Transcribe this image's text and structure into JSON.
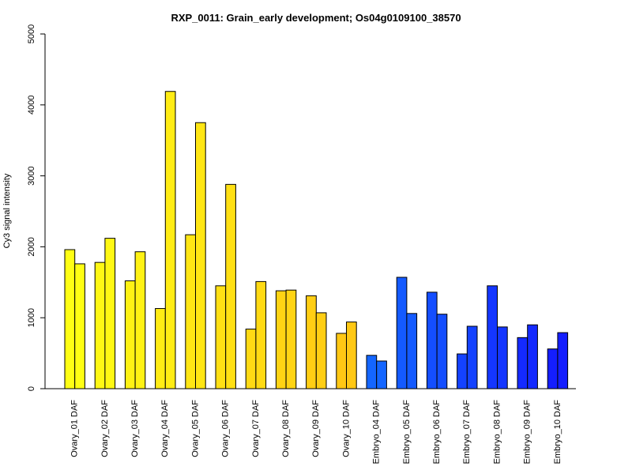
{
  "chart_data": {
    "type": "bar",
    "title": "RXP_0011: Grain_early development; Os04g0109100_38570",
    "xlabel": "",
    "ylabel": "Cy3 signal intensity",
    "ylim": [
      0,
      5000
    ],
    "yticks": [
      0,
      1000,
      2000,
      3000,
      4000,
      5000
    ],
    "grid": false,
    "legend": "none",
    "categories": [
      "Ovary_01 DAF",
      "Ovary_02 DAF",
      "Ovary_03 DAF",
      "Ovary_04 DAF",
      "Ovary_05 DAF",
      "Ovary_06 DAF",
      "Ovary_07 DAF",
      "Ovary_08 DAF",
      "Ovary_09 DAF",
      "Ovary_10 DAF",
      "Embryo_04 DAF",
      "Embryo_05 DAF",
      "Embryo_06 DAF",
      "Embryo_07 DAF",
      "Embryo_08 DAF",
      "Embryo_09 DAF",
      "Embryo_10 DAF"
    ],
    "series": [
      {
        "values": [
          1960,
          1780,
          1520,
          1130,
          2170,
          1450,
          840,
          1380,
          1310,
          780,
          470,
          1570,
          1360,
          490,
          1450,
          720,
          560
        ]
      },
      {
        "values": [
          1760,
          2120,
          1930,
          4190,
          3750,
          2880,
          1510,
          1390,
          1070,
          940,
          390,
          1060,
          1050,
          880,
          870,
          900,
          790
        ]
      }
    ],
    "colors": [
      "#ffff14",
      "#fff814",
      "#fff214",
      "#ffec14",
      "#ffe614",
      "#ffe014",
      "#ffda14",
      "#ffd414",
      "#ffce14",
      "#ffc814",
      "#1466ff",
      "#145aff",
      "#144eff",
      "#1442ff",
      "#1436ff",
      "#142aff",
      "#141eff"
    ]
  }
}
